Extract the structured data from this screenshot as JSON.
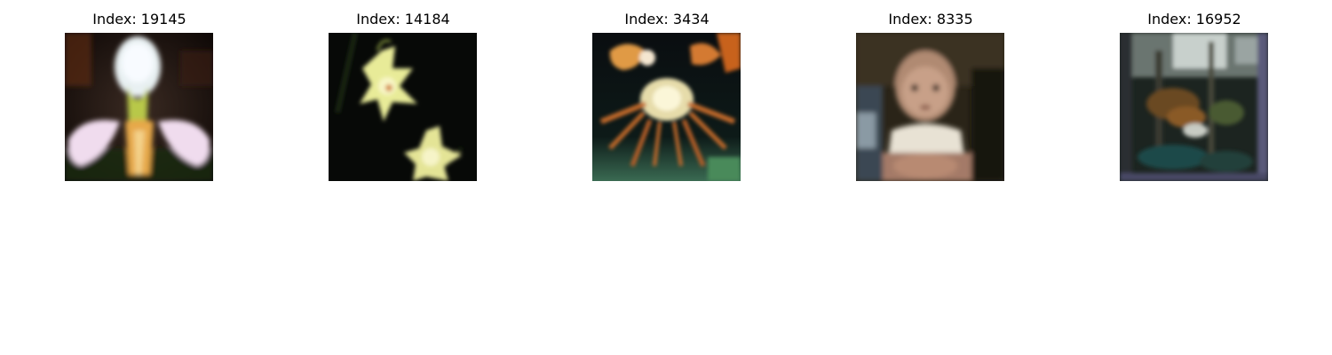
{
  "figure": {
    "panels": [
      {
        "title": "Index: 19145",
        "subject": "white-orchid-flower"
      },
      {
        "title": "Index: 14184",
        "subject": "yellow-flowers-on-dark-background"
      },
      {
        "title": "Index: 3434",
        "subject": "crab"
      },
      {
        "title": "Index: 8335",
        "subject": "toddler"
      },
      {
        "title": "Index: 16952",
        "subject": "forest-scene"
      }
    ]
  }
}
